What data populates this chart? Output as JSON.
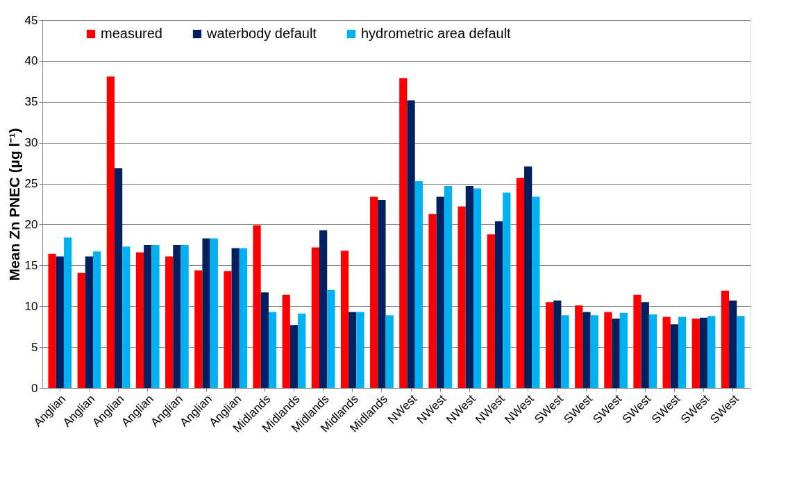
{
  "chart_data": {
    "type": "bar",
    "ylabel": "Mean Zn PNEC (µg l⁻¹)",
    "categories": [
      "Anglian",
      "Anglian",
      "Anglian",
      "Anglian",
      "Anglian",
      "Anglian",
      "Anglian",
      "Midlands",
      "Midlands",
      "Midlands",
      "Midlands",
      "Midlands",
      "NWest",
      "NWest",
      "NWest",
      "NWest",
      "NWest",
      "SWest",
      "SWest",
      "SWest",
      "SWest",
      "SWest",
      "SWest",
      "SWest"
    ],
    "series": [
      {
        "name": "measured",
        "color": "#ff0000",
        "values": [
          16.4,
          14.1,
          38.1,
          16.6,
          16.1,
          14.4,
          14.3,
          19.9,
          11.4,
          17.2,
          16.8,
          23.4,
          37.9,
          21.3,
          22.2,
          18.8,
          25.7,
          10.5,
          10.1,
          9.3,
          11.4,
          8.7,
          8.5,
          11.9
        ]
      },
      {
        "name": "waterbody default",
        "color": "#002060",
        "values": [
          16.1,
          16.1,
          26.9,
          17.5,
          17.5,
          18.3,
          17.1,
          11.7,
          7.7,
          19.3,
          9.3,
          23.0,
          35.2,
          23.4,
          24.7,
          20.4,
          27.1,
          10.7,
          9.3,
          8.5,
          10.5,
          7.8,
          8.6,
          10.7
        ]
      },
      {
        "name": "hydrometric area default",
        "color": "#00b0f0",
        "values": [
          18.4,
          16.7,
          17.3,
          17.5,
          17.5,
          18.3,
          17.1,
          9.3,
          9.1,
          12.0,
          9.3,
          8.9,
          25.3,
          24.7,
          24.4,
          23.9,
          23.4,
          8.9,
          8.9,
          9.2,
          9.0,
          8.7,
          8.8,
          8.8
        ]
      }
    ],
    "ylim": [
      0,
      45
    ],
    "yticks": [
      0,
      5,
      10,
      15,
      20,
      25,
      30,
      35,
      40,
      45
    ],
    "grid": "y",
    "legend": "top"
  }
}
